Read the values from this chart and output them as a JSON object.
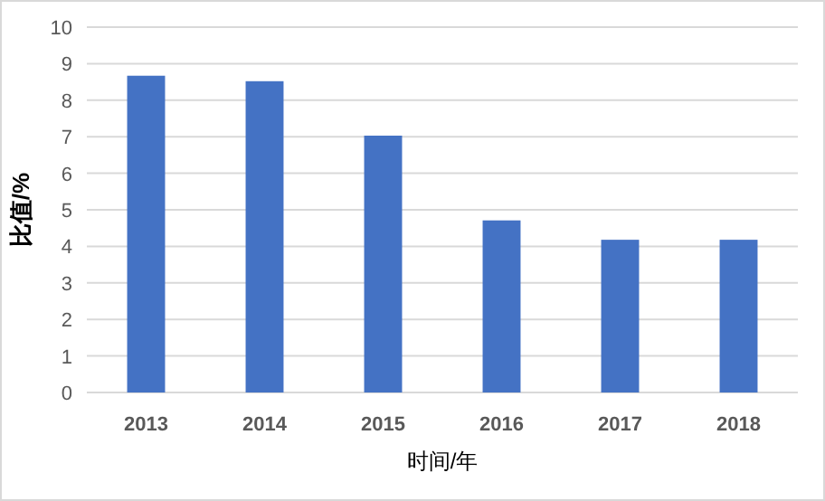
{
  "chart_data": {
    "type": "bar",
    "xlabel": "时间/年",
    "ylabel": "比值/%",
    "categories": [
      "2013",
      "2014",
      "2015",
      "2016",
      "2017",
      "2018"
    ],
    "values": [
      8.67,
      8.52,
      7.03,
      4.71,
      4.18,
      4.18
    ],
    "color": "#4472c4",
    "ylim": [
      0,
      10
    ],
    "yticks": [
      0,
      1,
      2,
      3,
      4,
      5,
      6,
      7,
      8,
      9,
      10
    ],
    "grid": "y"
  }
}
